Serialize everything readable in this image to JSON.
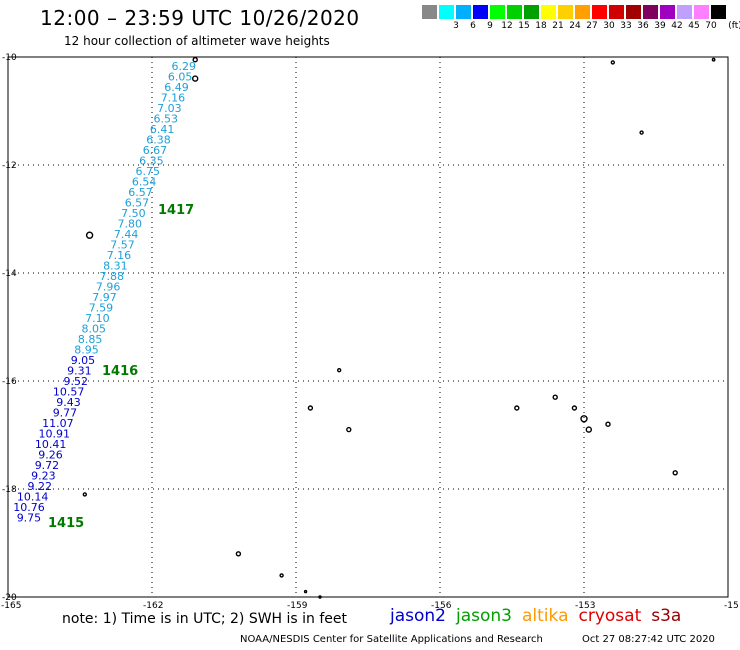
{
  "title": "12:00 – 23:59 UTC 10/26/2020",
  "subtitle": "12 hour collection of altimeter wave heights",
  "legend": {
    "unit_label": "(ft)",
    "bins": [
      {
        "label": "",
        "color": "#888888"
      },
      {
        "label": "3",
        "color": "#00ffff"
      },
      {
        "label": "6",
        "color": "#00b0ff"
      },
      {
        "label": "9",
        "color": "#0000ff"
      },
      {
        "label": "12",
        "color": "#00ff00"
      },
      {
        "label": "15",
        "color": "#00d000"
      },
      {
        "label": "18",
        "color": "#00a000"
      },
      {
        "label": "21",
        "color": "#ffff00"
      },
      {
        "label": "24",
        "color": "#ffd000"
      },
      {
        "label": "27",
        "color": "#ffa000"
      },
      {
        "label": "30",
        "color": "#ff0000"
      },
      {
        "label": "33",
        "color": "#d00000"
      },
      {
        "label": "36",
        "color": "#a00000"
      },
      {
        "label": "39",
        "color": "#800060"
      },
      {
        "label": "42",
        "color": "#a000c0"
      },
      {
        "label": "45",
        "color": "#c0a0ff"
      },
      {
        "label": "70",
        "color": "#ff80ff"
      },
      {
        "label": "",
        "color": "#000000"
      }
    ]
  },
  "axes": {
    "lat_labels": [
      "-10",
      "-12",
      "-14",
      "-16",
      "-18",
      "-20"
    ],
    "lon_labels": [
      "-165",
      "-162",
      "-159",
      "-156",
      "-153",
      "-15"
    ],
    "lat_range": [
      -20,
      -10
    ],
    "lon_range": [
      -165,
      -150
    ]
  },
  "track": {
    "satellite": "jason2",
    "values": [
      {
        "lat": -10.0,
        "swh": "6.29",
        "color": "#1e9fd8"
      },
      {
        "lat": -10.2,
        "swh": "6.05",
        "color": "#1e9fd8"
      },
      {
        "lat": -10.4,
        "swh": "6.49",
        "color": "#1e9fd8"
      },
      {
        "lat": -10.6,
        "swh": "7.16",
        "color": "#1e9fd8"
      },
      {
        "lat": -10.8,
        "swh": "7.03",
        "color": "#1e9fd8"
      },
      {
        "lat": -11.0,
        "swh": "6.53",
        "color": "#1e9fd8"
      },
      {
        "lat": -11.2,
        "swh": "6.41",
        "color": "#1e9fd8"
      },
      {
        "lat": -11.4,
        "swh": "6.38",
        "color": "#1e9fd8"
      },
      {
        "lat": -11.6,
        "swh": "6.67",
        "color": "#1e9fd8"
      },
      {
        "lat": -11.8,
        "swh": "6.35",
        "color": "#1e9fd8"
      },
      {
        "lat": -12.0,
        "swh": "6.75",
        "color": "#1e9fd8"
      },
      {
        "lat": -12.2,
        "swh": "6.54",
        "color": "#1e9fd8"
      },
      {
        "lat": -12.4,
        "swh": "6.57",
        "color": "#1e9fd8"
      },
      {
        "lat": -12.6,
        "swh": "6.57",
        "color": "#1e9fd8"
      },
      {
        "lat": -12.8,
        "swh": "7.50",
        "color": "#1e9fd8"
      },
      {
        "lat": -13.0,
        "swh": "7.80",
        "color": "#1e9fd8"
      },
      {
        "lat": -13.2,
        "swh": "7.44",
        "color": "#1e9fd8"
      },
      {
        "lat": -13.4,
        "swh": "7.57",
        "color": "#1e9fd8"
      },
      {
        "lat": -13.6,
        "swh": "7.16",
        "color": "#1e9fd8"
      },
      {
        "lat": -13.8,
        "swh": "8.31",
        "color": "#1e9fd8"
      },
      {
        "lat": -14.0,
        "swh": "7.88",
        "color": "#1e9fd8"
      },
      {
        "lat": -14.2,
        "swh": "7.96",
        "color": "#1e9fd8"
      },
      {
        "lat": -14.4,
        "swh": "7.97",
        "color": "#1e9fd8"
      },
      {
        "lat": -14.6,
        "swh": "7.59",
        "color": "#1e9fd8"
      },
      {
        "lat": -14.8,
        "swh": "7.10",
        "color": "#1e9fd8"
      },
      {
        "lat": -15.0,
        "swh": "8.05",
        "color": "#1e9fd8"
      },
      {
        "lat": -15.2,
        "swh": "8.85",
        "color": "#1e9fd8"
      },
      {
        "lat": -15.4,
        "swh": "8.95",
        "color": "#1e9fd8"
      },
      {
        "lat": -15.6,
        "swh": "9.05",
        "color": "#0000cc"
      },
      {
        "lat": -15.8,
        "swh": "9.31",
        "color": "#0000cc"
      },
      {
        "lat": -16.0,
        "swh": "9.52",
        "color": "#0000cc"
      },
      {
        "lat": -16.2,
        "swh": "10.57",
        "color": "#0000cc"
      },
      {
        "lat": -16.4,
        "swh": "9.43",
        "color": "#0000cc"
      },
      {
        "lat": -16.6,
        "swh": "9.77",
        "color": "#0000cc"
      },
      {
        "lat": -16.8,
        "swh": "11.07",
        "color": "#0000cc"
      },
      {
        "lat": -17.0,
        "swh": "10.91",
        "color": "#0000cc"
      },
      {
        "lat": -17.2,
        "swh": "10.41",
        "color": "#0000cc"
      },
      {
        "lat": -17.4,
        "swh": "9.26",
        "color": "#0000cc"
      },
      {
        "lat": -17.6,
        "swh": "9.72",
        "color": "#0000cc"
      },
      {
        "lat": -17.8,
        "swh": "9.23",
        "color": "#0000cc"
      },
      {
        "lat": -18.0,
        "swh": "9.22",
        "color": "#0000cc"
      },
      {
        "lat": -18.2,
        "swh": "10.14",
        "color": "#0000cc"
      },
      {
        "lat": -18.4,
        "swh": "10.76",
        "color": "#0000cc"
      },
      {
        "lat": -18.6,
        "swh": "9.75",
        "color": "#0000cc"
      }
    ],
    "time_marks": [
      {
        "lat": -12.9,
        "lon": -162.0,
        "label": "1417"
      },
      {
        "lat": -15.8,
        "lon": -162.3,
        "label": "1416"
      },
      {
        "lat": -18.6,
        "lon": -164.2,
        "label": "1415"
      }
    ]
  },
  "note": "note:  1) Time is in UTC;  2) SWH is in feet",
  "satellites": [
    {
      "name": "jason2",
      "color": "#0000cc"
    },
    {
      "name": "jason3",
      "color": "#00a000"
    },
    {
      "name": "altika",
      "color": "#ff9900"
    },
    {
      "name": "cryosat",
      "color": "#dd0000"
    },
    {
      "name": "s3a",
      "color": "#990000"
    }
  ],
  "credit": "NOAA/NESDIS Center for Satellite Applications and Research",
  "timestamp": "Oct 27 08:27:42 UTC 2020"
}
